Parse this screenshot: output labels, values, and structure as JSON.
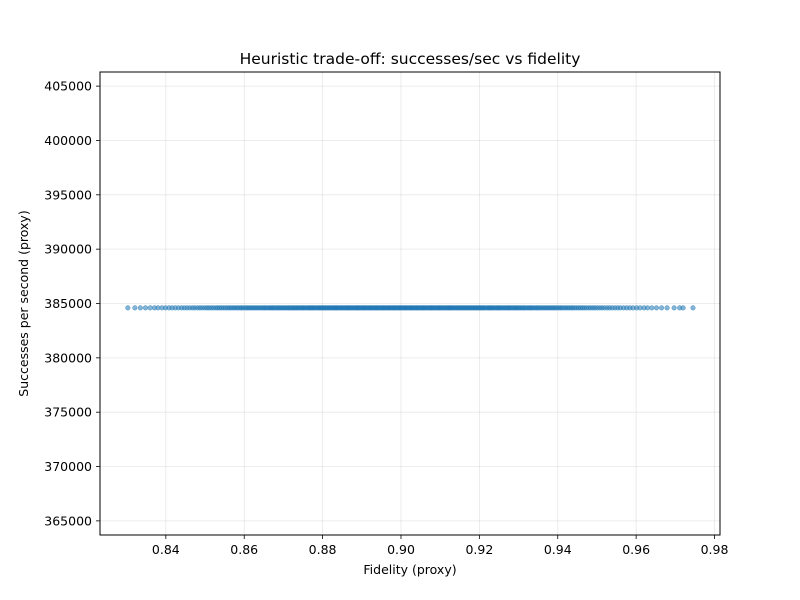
{
  "chart_data": {
    "type": "scatter",
    "title": "Heuristic trade-off: successes/sec vs fidelity",
    "xlabel": "Fidelity (proxy)",
    "ylabel": "Successes per second (proxy)",
    "xlim": [
      0.8232,
      0.9814
    ],
    "ylim": [
      363700,
      406300
    ],
    "xticks": [
      0.84,
      0.86,
      0.88,
      0.9,
      0.92,
      0.94,
      0.96,
      0.98
    ],
    "xtick_labels": [
      "0.84",
      "0.86",
      "0.88",
      "0.90",
      "0.92",
      "0.94",
      "0.96",
      "0.98"
    ],
    "yticks": [
      365000,
      370000,
      375000,
      380000,
      385000,
      390000,
      395000,
      400000,
      405000
    ],
    "ytick_labels": [
      "365000",
      "370000",
      "375000",
      "380000",
      "385000",
      "390000",
      "395000",
      "400000",
      "405000"
    ],
    "grid": true,
    "marker_color": "#1f77b4",
    "series": [
      {
        "name": "",
        "y_value": 384600,
        "x": [
          0.8303,
          0.8321,
          0.8335,
          0.8348,
          0.836,
          0.8371,
          0.838,
          0.839,
          0.8399,
          0.8408,
          0.8416,
          0.8424,
          0.8432,
          0.844,
          0.8447,
          0.8454,
          0.8461,
          0.8468,
          0.8474,
          0.8481,
          0.8487,
          0.8493,
          0.8499,
          0.8505,
          0.851,
          0.8516,
          0.8521,
          0.8527,
          0.8532,
          0.8537,
          0.8542,
          0.8547,
          0.8552,
          0.8557,
          0.8562,
          0.8566,
          0.8571,
          0.8575,
          0.858,
          0.8584,
          0.8589,
          0.8593,
          0.8597,
          0.8602,
          0.8606,
          0.861,
          0.8614,
          0.8618,
          0.8622,
          0.8626,
          0.863,
          0.8634,
          0.8638,
          0.8642,
          0.8646,
          0.865,
          0.8653,
          0.8657,
          0.8661,
          0.8665,
          0.8668,
          0.8672,
          0.8675,
          0.8679,
          0.8683,
          0.8686,
          0.869,
          0.8693,
          0.8697,
          0.87,
          0.8704,
          0.8707,
          0.8711,
          0.8714,
          0.8717,
          0.8721,
          0.8724,
          0.8727,
          0.8731,
          0.8734,
          0.8737,
          0.874,
          0.8744,
          0.8747,
          0.875,
          0.8753,
          0.8756,
          0.876,
          0.8763,
          0.8766,
          0.8769,
          0.8772,
          0.8775,
          0.8778,
          0.8781,
          0.8785,
          0.8788,
          0.8791,
          0.8794,
          0.8797,
          0.88,
          0.8803,
          0.8806,
          0.8809,
          0.8812,
          0.8815,
          0.8818,
          0.8821,
          0.8824,
          0.8827,
          0.883,
          0.8833,
          0.8835,
          0.8838,
          0.8841,
          0.8844,
          0.8847,
          0.885,
          0.8853,
          0.8856,
          0.8859,
          0.8862,
          0.8865,
          0.8867,
          0.887,
          0.8873,
          0.8876,
          0.8879,
          0.8882,
          0.8885,
          0.8888,
          0.889,
          0.8893,
          0.8896,
          0.8899,
          0.8902,
          0.8905,
          0.8907,
          0.891,
          0.8913,
          0.8916,
          0.8919,
          0.8922,
          0.8924,
          0.8927,
          0.893,
          0.8933,
          0.8936,
          0.8938,
          0.8941,
          0.8944,
          0.8947,
          0.895,
          0.8953,
          0.8955,
          0.8958,
          0.8961,
          0.8964,
          0.8967,
          0.8969,
          0.8972,
          0.8975,
          0.8978,
          0.8981,
          0.8983,
          0.8986,
          0.8989,
          0.8992,
          0.8995,
          0.8997,
          0.9,
          0.9003,
          0.9006,
          0.9009,
          0.9011,
          0.9014,
          0.9017,
          0.902,
          0.9023,
          0.9026,
          0.9028,
          0.9031,
          0.9034,
          0.9037,
          0.904,
          0.9042,
          0.9045,
          0.9048,
          0.9051,
          0.9054,
          0.9057,
          0.9059,
          0.9062,
          0.9065,
          0.9068,
          0.9071,
          0.9074,
          0.9077,
          0.9079,
          0.9082,
          0.9085,
          0.9088,
          0.9091,
          0.9094,
          0.9097,
          0.9099,
          0.9102,
          0.9105,
          0.9108,
          0.9111,
          0.9114,
          0.9117,
          0.912,
          0.9123,
          0.9125,
          0.9128,
          0.9131,
          0.9134,
          0.9137,
          0.914,
          0.9143,
          0.9146,
          0.9149,
          0.9152,
          0.9155,
          0.9158,
          0.9161,
          0.9164,
          0.9167,
          0.917,
          0.9173,
          0.9176,
          0.9179,
          0.9182,
          0.9185,
          0.9188,
          0.9191,
          0.9194,
          0.9197,
          0.92,
          0.9203,
          0.9206,
          0.9209,
          0.9212,
          0.9215,
          0.9219,
          0.9222,
          0.9225,
          0.9228,
          0.9231,
          0.9234,
          0.9237,
          0.9241,
          0.9244,
          0.9247,
          0.925,
          0.9253,
          0.9256,
          0.926,
          0.9263,
          0.9266,
          0.927,
          0.9273,
          0.9276,
          0.9279,
          0.9283,
          0.9286,
          0.929,
          0.9293,
          0.9296,
          0.93,
          0.9303,
          0.9307,
          0.931,
          0.9314,
          0.9317,
          0.9321,
          0.9325,
          0.9328,
          0.9332,
          0.9335,
          0.9339,
          0.9343,
          0.9347,
          0.935,
          0.9354,
          0.9358,
          0.9362,
          0.9366,
          0.937,
          0.9374,
          0.9378,
          0.9382,
          0.9386,
          0.939,
          0.9394,
          0.9398,
          0.9403,
          0.9407,
          0.9411,
          0.9416,
          0.942,
          0.9425,
          0.9429,
          0.9434,
          0.9438,
          0.9443,
          0.9448,
          0.9453,
          0.9458,
          0.9463,
          0.9468,
          0.9473,
          0.9479,
          0.9484,
          0.949,
          0.9495,
          0.9501,
          0.9507,
          0.9513,
          0.9519,
          0.9526,
          0.9532,
          0.9539,
          0.9546,
          0.9553,
          0.956,
          0.9568,
          0.9576,
          0.9584,
          0.9592,
          0.9601,
          0.961,
          0.962,
          0.9629,
          0.964,
          0.9652,
          0.9665,
          0.9679,
          0.9697,
          0.9711,
          0.972,
          0.9745
        ]
      }
    ]
  }
}
